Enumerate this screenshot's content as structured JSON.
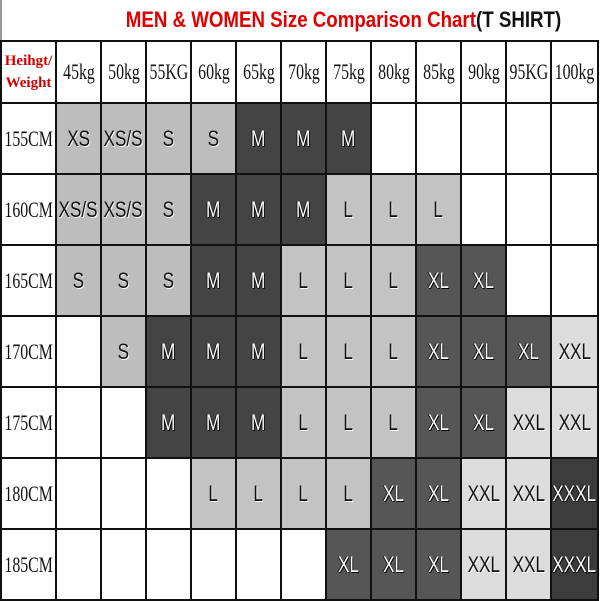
{
  "title": {
    "main": "MEN & WOMEN Size Comparison Chart",
    "suffix": "(T SHIRT)"
  },
  "corner": {
    "line1": "Heihgt/",
    "line2": "Weight"
  },
  "size_colors": {
    "XS": "#bdbdbd",
    "XS/S": "#bdbdbd",
    "S": "#bdbdbd",
    "M": "#444444",
    "L": "#c3c3c3",
    "XL": "#565656",
    "XXL": "#dcdcdc",
    "XXXL": "#3c3c3c",
    "": "#ffffff"
  },
  "chart_data": {
    "type": "table",
    "title": "MEN & WOMEN Size Comparison Chart(T SHIRT)",
    "row_header": "Heihgt/Weight",
    "columns": [
      "45kg",
      "50kg",
      "55KG",
      "60kg",
      "65kg",
      "70kg",
      "75kg",
      "80kg",
      "85kg",
      "90kg",
      "95KG",
      "100kg"
    ],
    "rows": [
      {
        "height": "155CM",
        "sizes": [
          "XS",
          "XS/S",
          "S",
          "S",
          "M",
          "M",
          "M",
          "",
          "",
          "",
          "",
          ""
        ]
      },
      {
        "height": "160CM",
        "sizes": [
          "XS/S",
          "XS/S",
          "S",
          "M",
          "M",
          "M",
          "L",
          "L",
          "L",
          "",
          "",
          ""
        ]
      },
      {
        "height": "165CM",
        "sizes": [
          "S",
          "S",
          "S",
          "M",
          "M",
          "L",
          "L",
          "L",
          "XL",
          "XL",
          "",
          ""
        ]
      },
      {
        "height": "170CM",
        "sizes": [
          "",
          "S",
          "M",
          "M",
          "M",
          "L",
          "L",
          "L",
          "XL",
          "XL",
          "XL",
          "XXL"
        ]
      },
      {
        "height": "175CM",
        "sizes": [
          "",
          "",
          "M",
          "M",
          "M",
          "L",
          "L",
          "L",
          "XL",
          "XL",
          "XXL",
          "XXL"
        ]
      },
      {
        "height": "180CM",
        "sizes": [
          "",
          "",
          "",
          "L",
          "L",
          "L",
          "L",
          "XL",
          "XL",
          "XXL",
          "XXL",
          "XXXL"
        ]
      },
      {
        "height": "185CM",
        "sizes": [
          "",
          "",
          "",
          "",
          "",
          "",
          "XL",
          "XL",
          "XL",
          "XXL",
          "XXL",
          "XXXL"
        ]
      }
    ]
  }
}
